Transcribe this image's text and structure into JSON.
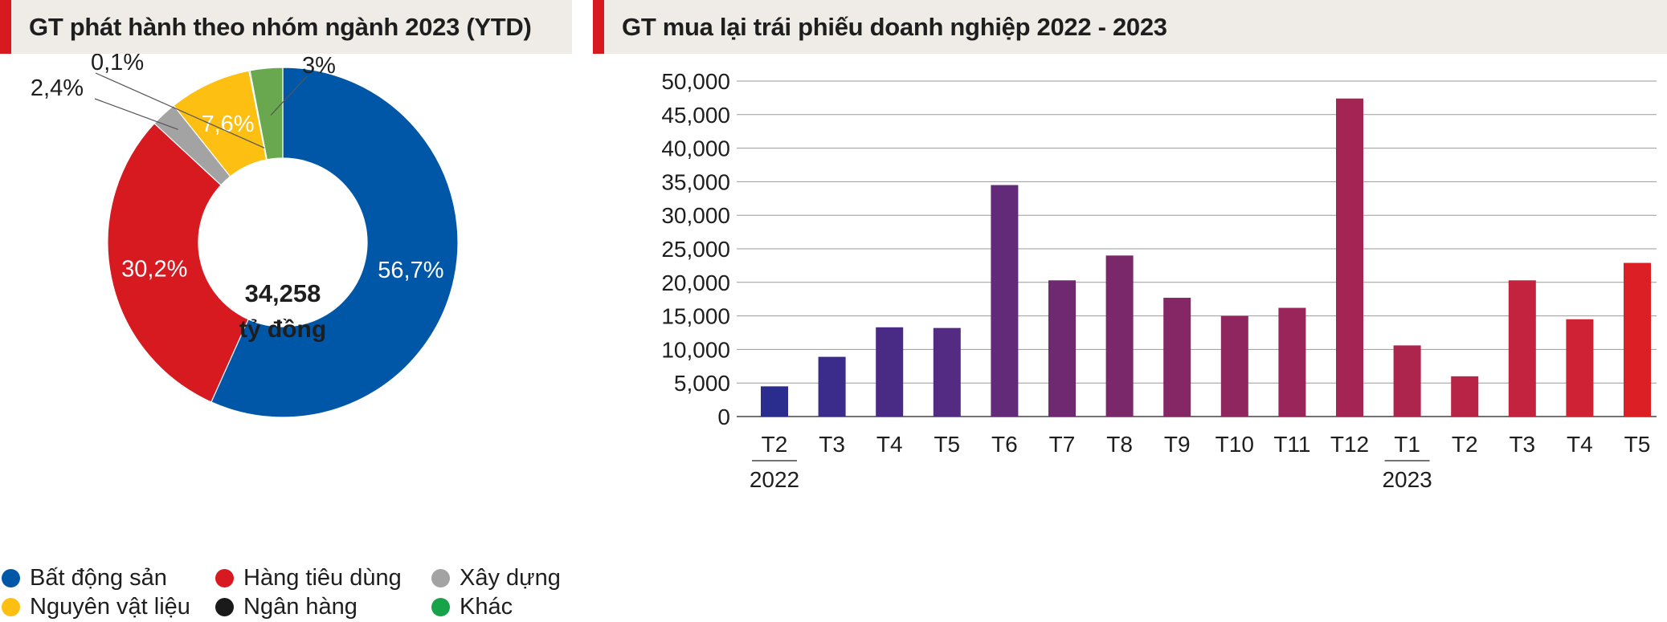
{
  "left_panel": {
    "title": "GT phát hành theo nhóm ngành 2023 (YTD)",
    "center_value": "34,258",
    "center_unit": "tỷ đồng"
  },
  "right_panel": {
    "title": "GT mua lại trái phiếu doanh nghiệp 2022 - 2023"
  },
  "legend": [
    {
      "label": "Bất động sản",
      "color": "#0057a8"
    },
    {
      "label": "Hàng tiêu dùng",
      "color": "#d71920"
    },
    {
      "label": "Xây dựng",
      "color": "#a3a3a3"
    },
    {
      "label": "Nguyên vật liệu",
      "color": "#fcbf12"
    },
    {
      "label": "Ngân hàng",
      "color": "#1a1a1a"
    },
    {
      "label": "Khác",
      "color": "#16a34a"
    }
  ],
  "chart_data": [
    {
      "type": "pie",
      "subtype": "donut",
      "title": "GT phát hành theo nhóm ngành 2023 (YTD)",
      "center_label": [
        "34,258",
        "tỷ đồng"
      ],
      "slices": [
        {
          "name": "Bất động sản",
          "value": 56.7,
          "label": "56,7%",
          "color": "#0057a8"
        },
        {
          "name": "Hàng tiêu dùng",
          "value": 30.2,
          "label": "30,2%",
          "color": "#d71920"
        },
        {
          "name": "Xây dựng",
          "value": 2.4,
          "label": "2,4%",
          "color": "#a3a3a3"
        },
        {
          "name": "Nguyên vật liệu",
          "value": 7.6,
          "label": "7,6%",
          "color": "#fcbf12"
        },
        {
          "name": "Ngân hàng",
          "value": 0.1,
          "label": "0,1%",
          "color": "#1a1a1a"
        },
        {
          "name": "Khác",
          "value": 3.0,
          "label": "3%",
          "color": "#6aa84f"
        }
      ]
    },
    {
      "type": "bar",
      "title": "GT mua lại trái phiếu doanh nghiệp 2022 - 2023",
      "categories": [
        "T2",
        "T3",
        "T4",
        "T5",
        "T6",
        "T7",
        "T8",
        "T9",
        "T10",
        "T11",
        "T12",
        "T1",
        "T2",
        "T3",
        "T4",
        "T5"
      ],
      "values": [
        4500,
        8900,
        13300,
        13200,
        34500,
        20300,
        24000,
        17700,
        15000,
        16200,
        47400,
        10600,
        6000,
        20300,
        14500,
        22900
      ],
      "colors": [
        "#2b2d8e",
        "#3b2b8b",
        "#492b86",
        "#532b82",
        "#622a78",
        "#6e2970",
        "#7a286a",
        "#852765",
        "#902660",
        "#9a255a",
        "#a42553",
        "#ad244c",
        "#b72446",
        "#c3233e",
        "#cf2234",
        "#db1f25"
      ],
      "year_labels": [
        {
          "index": 0,
          "label": "2022"
        },
        {
          "index": 11,
          "label": "2023"
        }
      ],
      "ylim": [
        0,
        50000
      ],
      "yticks": [
        0,
        5000,
        10000,
        15000,
        20000,
        25000,
        30000,
        35000,
        40000,
        45000,
        50000
      ],
      "ytick_labels": [
        "0",
        "5,000",
        "10,000",
        "15,000",
        "20,000",
        "25,000",
        "30,000",
        "35,000",
        "40,000",
        "45,000",
        "50,000"
      ],
      "grid": true,
      "xlabel": "",
      "ylabel": ""
    }
  ]
}
